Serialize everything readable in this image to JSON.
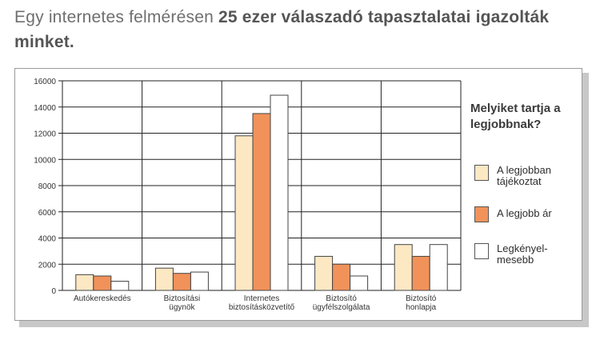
{
  "headline": {
    "text_plain": "Egy internetes felmérésen ",
    "text_bold": "25 ezer válaszadó tapasztalatai igazolták minket."
  },
  "colors": {
    "series1": "#fde8c4",
    "series2": "#f1925a",
    "series3": "#ffffff",
    "bar_outline": "#444444",
    "grid": "#222222"
  },
  "legend": {
    "title": "Melyiket tartja a legjobbnak?",
    "items": [
      {
        "label": "A legjobban tájékoztat",
        "color": "#fde8c4"
      },
      {
        "label": "A legjobb ár",
        "color": "#f1925a"
      },
      {
        "label": "Legkényel-mesebb",
        "color": "#ffffff"
      }
    ]
  },
  "chart_data": {
    "type": "bar",
    "categories": [
      [
        "Autókereskedés"
      ],
      [
        "Biztosítási",
        "ügynök"
      ],
      [
        "Internetes",
        "biztosításközvetítő"
      ],
      [
        "Biztosító",
        "ügyfélszolgálata"
      ],
      [
        "Biztosító",
        "honlapja"
      ]
    ],
    "series": [
      {
        "name": "A legjobban tájékoztat",
        "values": [
          1200,
          1700,
          11800,
          2600,
          3500
        ]
      },
      {
        "name": "A legjobb ár",
        "values": [
          1100,
          1300,
          13500,
          2000,
          2600
        ]
      },
      {
        "name": "Legkényel-mesebb",
        "values": [
          700,
          1400,
          14900,
          1100,
          3500
        ]
      }
    ],
    "ylim": [
      0,
      16000
    ],
    "yticks": [
      "0",
      "2000",
      "4000",
      "6000",
      "8000",
      "10000",
      "12000",
      "14000",
      "16000"
    ],
    "grid": true,
    "legend_position": "right"
  }
}
